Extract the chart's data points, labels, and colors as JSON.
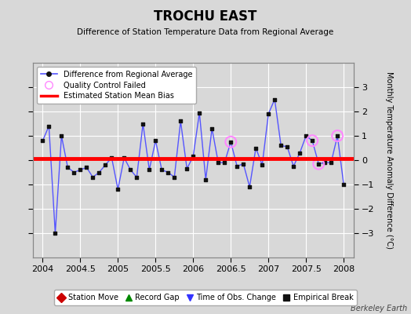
{
  "title": "TROCHU EAST",
  "subtitle": "Difference of Station Temperature Data from Regional Average",
  "ylabel_right": "Monthly Temperature Anomaly Difference (°C)",
  "xlabel_ticks": [
    2004,
    2004.5,
    2005,
    2005.5,
    2006,
    2006.5,
    2007,
    2007.5,
    2008
  ],
  "ylim": [
    -4,
    4
  ],
  "yticks": [
    -3,
    -2,
    -1,
    0,
    1,
    2,
    3
  ],
  "mean_bias": 0.05,
  "background_color": "#d8d8d8",
  "plot_bg_color": "#d8d8d8",
  "grid_color": "#ffffff",
  "line_color": "#5555ff",
  "marker_color": "#111111",
  "bias_color": "#ff0000",
  "qc_color": "#ff88ff",
  "watermark": "Berkeley Earth",
  "times": [
    2004.0,
    2004.083,
    2004.167,
    2004.25,
    2004.333,
    2004.417,
    2004.5,
    2004.583,
    2004.667,
    2004.75,
    2004.833,
    2004.917,
    2005.0,
    2005.083,
    2005.167,
    2005.25,
    2005.333,
    2005.417,
    2005.5,
    2005.583,
    2005.667,
    2005.75,
    2005.833,
    2005.917,
    2006.0,
    2006.083,
    2006.167,
    2006.25,
    2006.333,
    2006.417,
    2006.5,
    2006.583,
    2006.667,
    2006.75,
    2006.833,
    2006.917,
    2007.0,
    2007.083,
    2007.167,
    2007.25,
    2007.333,
    2007.417,
    2007.5,
    2007.583,
    2007.667,
    2007.75,
    2007.833,
    2007.917,
    2008.0
  ],
  "values": [
    0.8,
    1.4,
    -3.0,
    1.0,
    -0.3,
    -0.5,
    -0.4,
    -0.3,
    -0.7,
    -0.5,
    -0.2,
    0.1,
    -1.2,
    0.1,
    -0.4,
    -0.7,
    1.5,
    -0.4,
    0.8,
    -0.4,
    -0.5,
    -0.7,
    1.6,
    -0.35,
    0.15,
    1.95,
    -0.8,
    1.3,
    -0.1,
    -0.1,
    0.75,
    -0.25,
    -0.15,
    -1.1,
    0.5,
    -0.2,
    1.9,
    2.5,
    0.6,
    0.55,
    -0.25,
    0.3,
    1.0,
    0.8,
    -0.15,
    -0.1,
    -0.1,
    1.0,
    -1.0
  ],
  "qc_failed_indices": [
    30,
    43,
    44,
    47
  ],
  "legend_items": [
    {
      "label": "Difference from Regional Average",
      "color": "#5555ff",
      "type": "line_marker"
    },
    {
      "label": "Quality Control Failed",
      "color": "#ff88ff",
      "type": "circle"
    },
    {
      "label": "Estimated Station Mean Bias",
      "color": "#ff0000",
      "type": "line"
    }
  ],
  "bottom_legend": [
    {
      "label": "Station Move",
      "color": "#cc0000",
      "marker": "D"
    },
    {
      "label": "Record Gap",
      "color": "#008800",
      "marker": "^"
    },
    {
      "label": "Time of Obs. Change",
      "color": "#3333ff",
      "marker": "v"
    },
    {
      "label": "Empirical Break",
      "color": "#111111",
      "marker": "s"
    }
  ]
}
